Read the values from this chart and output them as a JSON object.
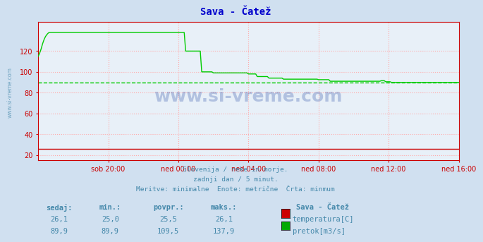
{
  "title": "Sava - Čatež",
  "title_color": "#0000cc",
  "bg_color": "#d0e0f0",
  "plot_bg_color": "#e8f0f8",
  "grid_color": "#ffaaaa",
  "xlabel_ticks": [
    "sob 20:00",
    "ned 00:00",
    "ned 04:00",
    "ned 08:00",
    "ned 12:00",
    "ned 16:00"
  ],
  "ytick_vals": [
    20,
    40,
    60,
    80,
    100,
    120
  ],
  "ylim": [
    15,
    148
  ],
  "xlim": [
    0,
    288
  ],
  "watermark": "www.si-vreme.com",
  "subtitle_lines": [
    "Slovenija / reke in morje.",
    "zadnji dan / 5 minut.",
    "Meritve: minimalne  Enote: metrične  Črta: minmum"
  ],
  "subtitle_color": "#4488aa",
  "legend_title": "Sava - Čatež",
  "legend_color1": "#cc0000",
  "legend_color2": "#00aa00",
  "legend_label1": "temperatura[C]",
  "legend_label2": "pretok[m3/s]",
  "table_headers": [
    "sedaj:",
    "min.:",
    "povpr.:",
    "maks.:"
  ],
  "table_row1": [
    "26,1",
    "25,0",
    "25,5",
    "26,1"
  ],
  "table_row2": [
    "89,9",
    "89,9",
    "109,5",
    "137,9"
  ],
  "table_color": "#4488aa",
  "temp_color": "#cc0000",
  "flow_color": "#00cc00",
  "min_flow_dashed": 89.9,
  "temp_flat": 26.0,
  "tick_color": "#cc0000",
  "border_color": "#cc0000",
  "spine_color": "#cc0000",
  "xtick_pos": [
    48,
    96,
    144,
    192,
    240,
    288
  ]
}
